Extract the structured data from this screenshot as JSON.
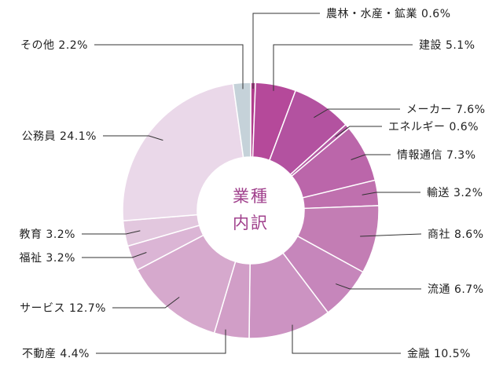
{
  "chart_data": {
    "type": "pie",
    "title": "業種内訳",
    "title_lines": [
      "業種",
      "内訳"
    ],
    "title_color": "#a0408c",
    "start": "top",
    "direction": "clockwise",
    "slices": [
      {
        "name": "農林・水産・鉱業",
        "value": 0.6,
        "pct_label": "0.6%",
        "color": "#b03e8c"
      },
      {
        "name": "建設",
        "value": 5.1,
        "pct_label": "5.1%",
        "color": "#b5499a"
      },
      {
        "name": "メーカー",
        "value": 7.6,
        "pct_label": "7.6%",
        "color": "#b352a0"
      },
      {
        "name": "エネルギー",
        "value": 0.6,
        "pct_label": "0.6%",
        "color": "#b45ba4"
      },
      {
        "name": "情報通信",
        "value": 7.3,
        "pct_label": "7.3%",
        "color": "#bb66aa"
      },
      {
        "name": "輸送",
        "value": 3.2,
        "pct_label": "3.2%",
        "color": "#bf70ae"
      },
      {
        "name": "商社",
        "value": 8.6,
        "pct_label": "8.6%",
        "color": "#c37db4"
      },
      {
        "name": "流通",
        "value": 6.7,
        "pct_label": "6.7%",
        "color": "#c686bb"
      },
      {
        "name": "金融",
        "value": 10.5,
        "pct_label": "10.5%",
        "color": "#cc93c2"
      },
      {
        "name": "不動産",
        "value": 4.4,
        "pct_label": "4.4%",
        "color": "#d19ec7"
      },
      {
        "name": "サービス",
        "value": 12.7,
        "pct_label": "12.7%",
        "color": "#d6a9cd"
      },
      {
        "name": "福祉",
        "value": 3.2,
        "pct_label": "3.2%",
        "color": "#dbb5d5"
      },
      {
        "name": "教育",
        "value": 3.2,
        "pct_label": "3.2%",
        "color": "#e2c7de"
      },
      {
        "name": "公務員",
        "value": 24.1,
        "pct_label": "24.1%",
        "color": "#ead8e9"
      },
      {
        "name": "その他",
        "value": 2.2,
        "pct_label": "2.2%",
        "color": "#c5d2d9"
      }
    ]
  }
}
